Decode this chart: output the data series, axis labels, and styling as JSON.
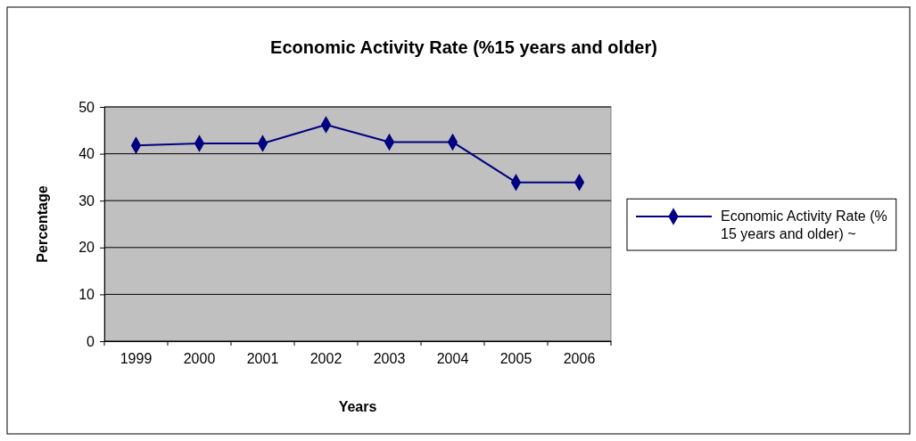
{
  "chart_data": {
    "type": "line",
    "title": "Economic Activity Rate (%15 years and older)",
    "xlabel": "Years",
    "ylabel": "Percentage",
    "categories": [
      "1999",
      "2000",
      "2001",
      "2002",
      "2003",
      "2004",
      "2005",
      "2006"
    ],
    "series": [
      {
        "name": "Economic Activity Rate (% 15 years and older) ~",
        "color": "#000080",
        "values": [
          41.8,
          42.2,
          42.2,
          46.2,
          42.5,
          42.5,
          33.9,
          33.9
        ]
      }
    ],
    "ylim": [
      0,
      50
    ],
    "yticks": [
      0,
      10,
      20,
      30,
      40,
      50
    ],
    "grid": "y",
    "legend": "right",
    "marker": "diamond",
    "line_style": "solid"
  }
}
